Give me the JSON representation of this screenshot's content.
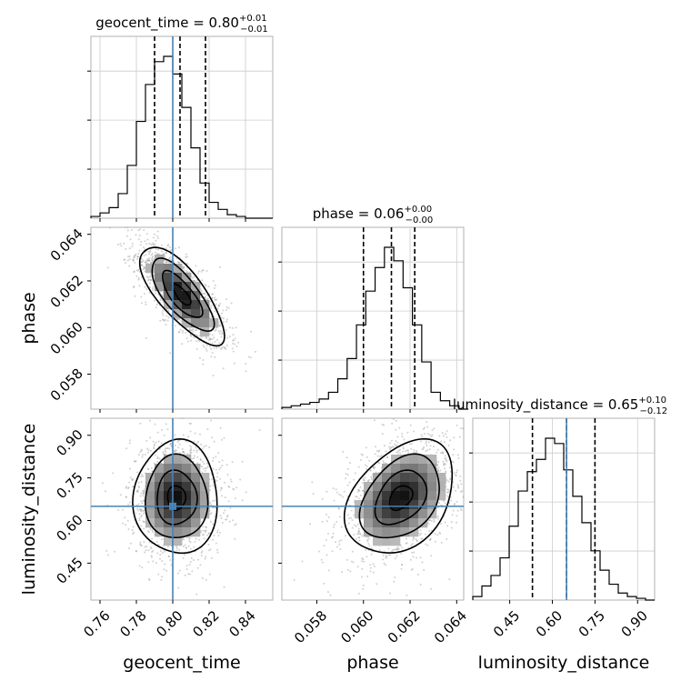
{
  "chart_data": {
    "type": "corner",
    "parameters": [
      {
        "name": "geocent_time",
        "axis_label": "geocent_time",
        "range": [
          0.755,
          0.855
        ],
        "ticks": [
          "0.76",
          "0.78",
          "0.80",
          "0.82",
          "0.84"
        ],
        "tick_values": [
          0.76,
          0.78,
          0.8,
          0.82,
          0.84
        ],
        "truth": 0.8,
        "title": {
          "base": "geocent_time = 0.80",
          "sup": "+0.01",
          "sub": "−0.01"
        },
        "quantiles": [
          0.79,
          0.804,
          0.818
        ],
        "hist_edges_start": 0.755,
        "hist_bin_width": 0.005,
        "hist_counts": [
          1,
          3,
          6,
          14,
          30,
          55,
          76,
          89,
          92,
          82,
          63,
          40,
          20,
          9,
          5,
          2,
          1,
          0,
          0,
          0
        ]
      },
      {
        "name": "phase",
        "axis_label": "phase",
        "range": [
          0.0565,
          0.0643
        ],
        "ticks": [
          "0.058",
          "0.060",
          "0.062",
          "0.064"
        ],
        "tick_values": [
          0.058,
          0.06,
          0.062,
          0.064
        ],
        "truth": null,
        "title": {
          "base": "phase = 0.06",
          "sup": "+0.00",
          "sub": "−0.00"
        },
        "quantiles": [
          0.06,
          0.0612,
          0.0622
        ],
        "hist_edges_start": 0.0565,
        "hist_bin_width": 0.0004,
        "hist_counts": [
          1,
          2,
          3,
          4,
          6,
          10,
          18,
          30,
          50,
          70,
          84,
          96,
          88,
          72,
          50,
          28,
          10,
          5,
          2,
          0
        ]
      },
      {
        "name": "luminosity_distance",
        "axis_label": "luminosity_distance",
        "range": [
          0.32,
          0.96
        ],
        "ticks": [
          "0.45",
          "0.60",
          "0.75",
          "0.90"
        ],
        "tick_values": [
          0.45,
          0.6,
          0.75,
          0.9
        ],
        "truth": 0.65,
        "title": {
          "base": "luminosity_distance = 0.65",
          "sup": "+0.10",
          "sub": "−0.12"
        },
        "quantiles": [
          0.53,
          0.65,
          0.75
        ],
        "hist_edges_start": 0.32,
        "hist_bin_width": 0.032,
        "hist_counts": [
          2,
          8,
          14,
          24,
          42,
          62,
          73,
          80,
          92,
          89,
          74,
          59,
          44,
          28,
          17,
          9,
          4,
          2,
          1,
          0
        ]
      }
    ],
    "joint_2d": [
      {
        "x": "geocent_time",
        "y": "phase",
        "center": [
          0.805,
          0.0614
        ],
        "sd": [
          0.011,
          0.001
        ],
        "correlation": -0.75
      },
      {
        "x": "geocent_time",
        "y": "luminosity_distance",
        "center": [
          0.802,
          0.68
        ],
        "sd": [
          0.011,
          0.095
        ],
        "correlation": 0.0
      },
      {
        "x": "phase",
        "y": "luminosity_distance",
        "center": [
          0.0616,
          0.68
        ],
        "sd": [
          0.0011,
          0.095
        ],
        "correlation": 0.35
      }
    ],
    "truth_color": "#4682b4",
    "quantile_style": "dashed",
    "contour_levels": 4,
    "grid": true
  }
}
